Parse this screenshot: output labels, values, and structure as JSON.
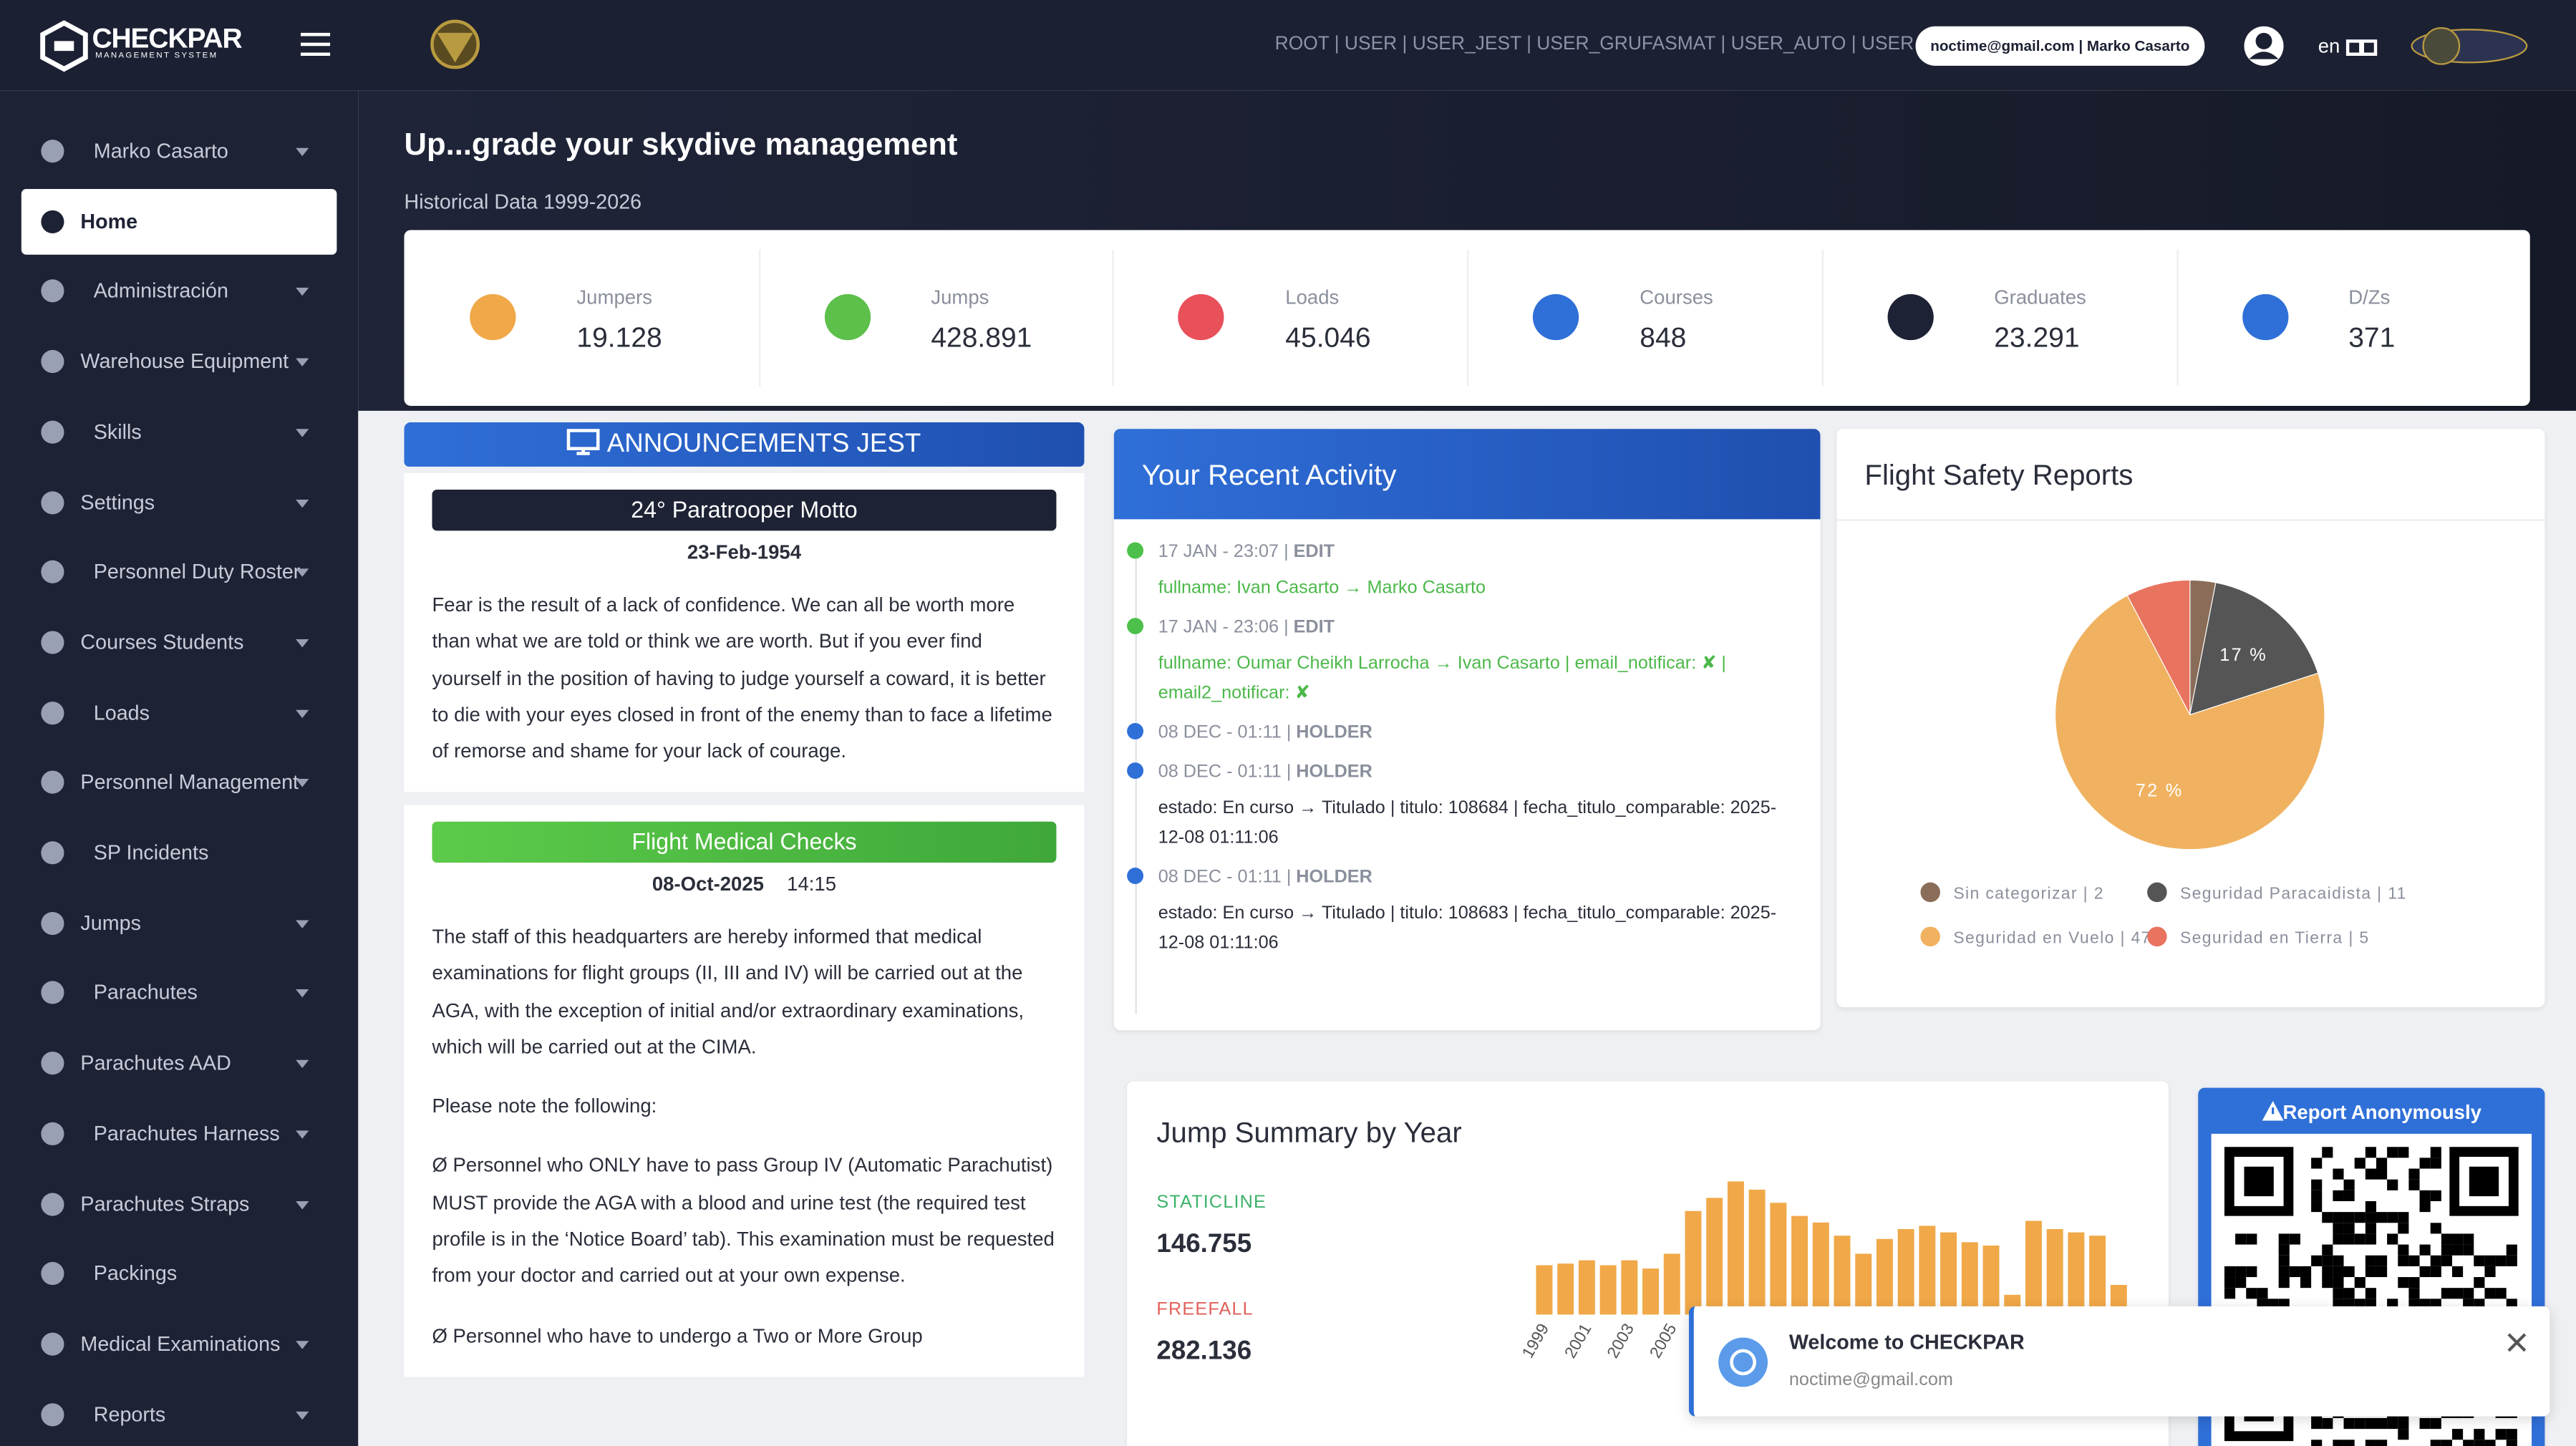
{
  "header": {
    "logo": "CHECKPAR",
    "logo_sub": "MANAGEMENT SYSTEM",
    "roles": "ROOT | USER | USER_JEST | USER_GRUFASMAT | USER_AUTO | USER",
    "account": "noctime@gmail.com | Marko Casarto",
    "language": "en"
  },
  "sidebar": {
    "items": [
      {
        "label": "Marko Casarto",
        "menu": true
      },
      {
        "label": "Home",
        "menu": false,
        "active": true
      },
      {
        "label": "Administración",
        "menu": true
      },
      {
        "label": "Warehouse Equipment",
        "menu": true
      },
      {
        "label": "Skills",
        "menu": true
      },
      {
        "label": "Settings",
        "menu": true
      },
      {
        "label": "Personnel Duty Roster",
        "menu": true
      },
      {
        "label": "Courses Students",
        "menu": true
      },
      {
        "label": "Loads",
        "menu": true
      },
      {
        "label": "Personnel Management",
        "menu": true
      },
      {
        "label": "SP Incidents",
        "menu": false
      },
      {
        "label": "Jumps",
        "menu": true
      },
      {
        "label": "Parachutes",
        "menu": true
      },
      {
        "label": "Parachutes AAD",
        "menu": true
      },
      {
        "label": "Parachutes Harness",
        "menu": true
      },
      {
        "label": "Parachutes Straps",
        "menu": true
      },
      {
        "label": "Packings",
        "menu": false
      },
      {
        "label": "Medical Examinations",
        "menu": true
      },
      {
        "label": "Reports",
        "menu": true
      }
    ]
  },
  "hero": {
    "title": "Up...grade your skydive management",
    "subtitle": "Historical Data 1999-2026"
  },
  "stats": [
    {
      "label": "Jumpers",
      "value": "19.128"
    },
    {
      "label": "Jumps",
      "value": "428.891"
    },
    {
      "label": "Loads",
      "value": "45.046"
    },
    {
      "label": "Courses",
      "value": "848"
    },
    {
      "label": "Graduates",
      "value": "23.291"
    },
    {
      "label": "D/Zs",
      "value": "371"
    }
  ],
  "announcements": {
    "header": "ANNOUNCEMENTS JEST",
    "items": [
      {
        "title": "24° Paratrooper Motto",
        "date": "23-Feb-1954",
        "time": null,
        "color": "dark",
        "paragraphs": [
          "Fear is the result of a lack of confidence. We can all be worth more than what we are told or think we are worth. But if you ever find yourself in the position of having to judge yourself a coward, it is better to die with your eyes closed in front of the enemy than to face a lifetime of remorse and shame for your lack of courage."
        ]
      },
      {
        "title": "Flight Medical Checks",
        "date": "08-Oct-2025",
        "time": "14:15",
        "color": "green",
        "paragraphs": [
          "The staff of this headquarters are hereby informed that medical examinations for flight groups (II, III and IV) will be carried out at the AGA, with the exception of initial and/or extraordinary examinations, which will be carried out at the CIMA.",
          "Please note the following:",
          "Ø Personnel who ONLY have to pass Group IV (Automatic Parachutist) MUST provide the AGA with a blood and urine test (the required test profile is in the ‘Notice Board’ tab). This examination must be requested from your doctor and carried out at your own expense.",
          "Ø Personnel who have to undergo a Two or More Group"
        ]
      }
    ]
  },
  "activity": {
    "title": "Your Recent Activity",
    "items": [
      {
        "time": "17 JAN - 23:07 |",
        "action": "EDIT",
        "detail": "fullname: Ivan Casarto → Marko Casarto",
        "color": "green"
      },
      {
        "time": "17 JAN - 23:06 |",
        "action": "EDIT",
        "detail": "fullname: Oumar Cheikh Larrocha → Ivan Casarto | email_notificar: ✘ | email2_notificar: ✘",
        "color": "green"
      },
      {
        "time": "08 DEC - 01:11 |",
        "action": "HOLDER",
        "detail": null,
        "color": "blue"
      },
      {
        "time": "08 DEC - 01:11 |",
        "action": "HOLDER",
        "detail": "estado: En curso → Titulado | titulo: 108684 | fecha_titulo_comparable: 2025-12-08 01:11:06",
        "color": "blue"
      },
      {
        "time": "08 DEC - 01:11 |",
        "action": "HOLDER",
        "detail": "estado: En curso → Titulado | titulo: 108683 | fecha_titulo_comparable: 2025-12-08 01:11:06",
        "color": "blue"
      }
    ]
  },
  "safety": {
    "title": "Flight Safety Reports",
    "chart_data": {
      "type": "pie",
      "categories": [
        "Sin categorizar",
        "Seguridad Paracaidista",
        "Seguridad en Vuelo",
        "Seguridad en Tierra"
      ],
      "legend": [
        "Sin categorizar | 2",
        "Seguridad Paracaidista | 11",
        "Seguridad en Vuelo | 47",
        "Seguridad en Tierra | 5"
      ],
      "values": [
        2,
        11,
        47,
        5
      ],
      "value_labels": [
        null,
        "17 %",
        "72 %",
        null
      ],
      "colors": [
        "#8a6d58",
        "#555555",
        "#f0b260",
        "#e8735f"
      ]
    }
  },
  "summary": {
    "title": "Jump Summary by Year",
    "staticline_label": "STATICLINE",
    "staticline": "146.755",
    "freefall_label": "FREEFALL",
    "freefall": "282.136",
    "chart_data": {
      "type": "bar",
      "color": "#f0a848",
      "categories": [
        "1999",
        null,
        "2001",
        null,
        "2003",
        null,
        "2005",
        null,
        null,
        null,
        null,
        null,
        null,
        null,
        null,
        null,
        null,
        null,
        null,
        null,
        null,
        null,
        null,
        null,
        null,
        null,
        null,
        null
      ],
      "values": [
        30,
        31,
        33,
        30,
        33,
        28,
        37,
        63,
        71,
        81,
        76,
        68,
        60,
        56,
        48,
        37,
        46,
        52,
        54,
        50,
        44,
        42,
        12,
        57,
        52,
        50,
        48,
        18
      ]
    }
  },
  "report": {
    "title": "Report Anonymously"
  },
  "toast": {
    "title": "Welcome to CHECKPAR",
    "email": "noctime@gmail.com"
  }
}
